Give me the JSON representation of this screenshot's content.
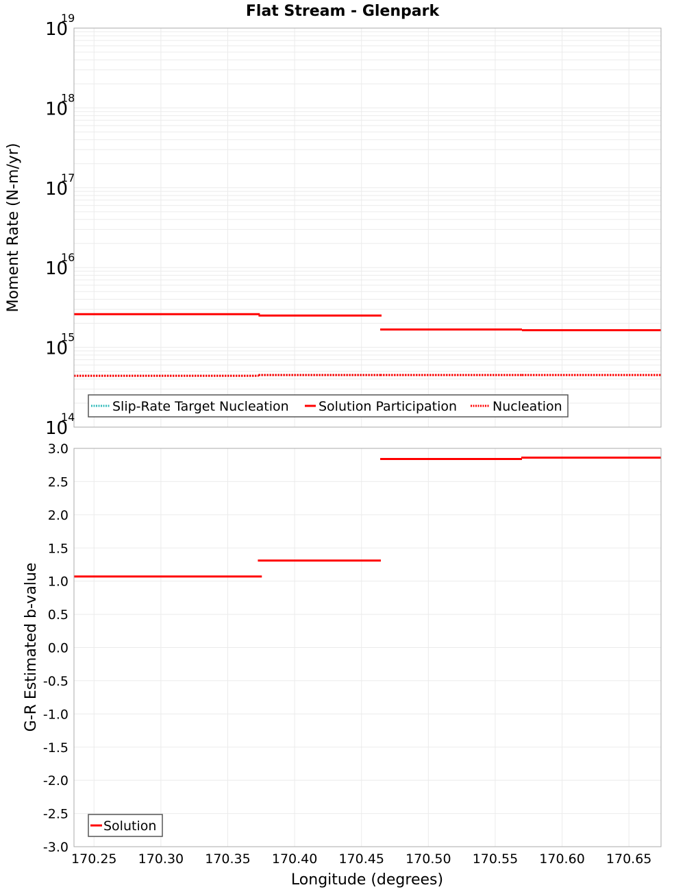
{
  "title": "Flat Stream - Glenpark",
  "colors": {
    "solution": "#ff0000",
    "slip_rate_target": "#33bbbb",
    "nucleation": "#ff0000",
    "grid": "#ebebeb",
    "frame": "#aaaaaa",
    "legend_border": "#555555"
  },
  "chart_data": [
    {
      "type": "line",
      "title": "Flat Stream - Glenpark",
      "xlabel": "Longitude (degrees)",
      "ylabel": "Moment Rate (N-m/yr)",
      "yscale": "log",
      "ylim": [
        100000000000000.0,
        1e+19
      ],
      "xlim": [
        170.235,
        170.674
      ],
      "y_ticks": [
        {
          "base": "10",
          "exp": "14"
        },
        {
          "base": "10",
          "exp": "15"
        },
        {
          "base": "10",
          "exp": "16"
        },
        {
          "base": "10",
          "exp": "17"
        },
        {
          "base": "10",
          "exp": "18"
        },
        {
          "base": "10",
          "exp": "19"
        }
      ],
      "grid": true,
      "legend_position": "bottom-left",
      "series": [
        {
          "name": "Slip-Rate Target Nucleation",
          "style": "dotted",
          "color": "#33bbbb",
          "segments": [
            {
              "x0": 170.235,
              "x1": 170.373,
              "y": 440000000000000.0
            },
            {
              "x0": 170.373,
              "x1": 170.464,
              "y": 450000000000000.0
            },
            {
              "x0": 170.464,
              "x1": 170.57,
              "y": 450000000000000.0
            },
            {
              "x0": 170.57,
              "x1": 170.674,
              "y": 450000000000000.0
            }
          ]
        },
        {
          "name": "Solution Participation",
          "style": "solid",
          "color": "#ff0000",
          "segments": [
            {
              "x0": 170.235,
              "x1": 170.374,
              "y": 2600000000000000.0
            },
            {
              "x0": 170.373,
              "x1": 170.465,
              "y": 2500000000000000.0
            },
            {
              "x0": 170.464,
              "x1": 170.57,
              "y": 1670000000000000.0
            },
            {
              "x0": 170.57,
              "x1": 170.674,
              "y": 1640000000000000.0
            }
          ]
        },
        {
          "name": "Nucleation",
          "style": "dotted",
          "color": "#ff0000",
          "segments": [
            {
              "x0": 170.235,
              "x1": 170.373,
              "y": 440000000000000.0
            },
            {
              "x0": 170.373,
              "x1": 170.464,
              "y": 450000000000000.0
            },
            {
              "x0": 170.464,
              "x1": 170.57,
              "y": 450000000000000.0
            },
            {
              "x0": 170.57,
              "x1": 170.674,
              "y": 450000000000000.0
            }
          ]
        }
      ]
    },
    {
      "type": "line",
      "xlabel": "Longitude (degrees)",
      "ylabel": "G-R Estimated b-value",
      "yscale": "linear",
      "ylim": [
        -3.0,
        3.0
      ],
      "xlim": [
        170.235,
        170.674
      ],
      "y_ticks": [
        "3.0",
        "2.5",
        "2.0",
        "1.5",
        "1.0",
        "0.5",
        "0.0",
        "-0.5",
        "-1.0",
        "-1.5",
        "-2.0",
        "-2.5",
        "-3.0"
      ],
      "x_ticks": [
        "170.25",
        "170.30",
        "170.35",
        "170.40",
        "170.45",
        "170.50",
        "170.55",
        "170.60",
        "170.65"
      ],
      "grid": true,
      "legend_position": "bottom-left",
      "series": [
        {
          "name": "Solution",
          "style": "solid",
          "color": "#ff0000",
          "segments": [
            {
              "x0": 170.235,
              "x1": 170.3755,
              "y": 1.07
            },
            {
              "x0": 170.3725,
              "x1": 170.4645,
              "y": 1.31
            },
            {
              "x0": 170.464,
              "x1": 170.57,
              "y": 2.84
            },
            {
              "x0": 170.5695,
              "x1": 170.674,
              "y": 2.86
            }
          ]
        }
      ]
    }
  ],
  "legends": {
    "top": [
      "Slip-Rate Target Nucleation",
      "Solution Participation",
      "Nucleation"
    ],
    "bottom": [
      "Solution"
    ]
  }
}
